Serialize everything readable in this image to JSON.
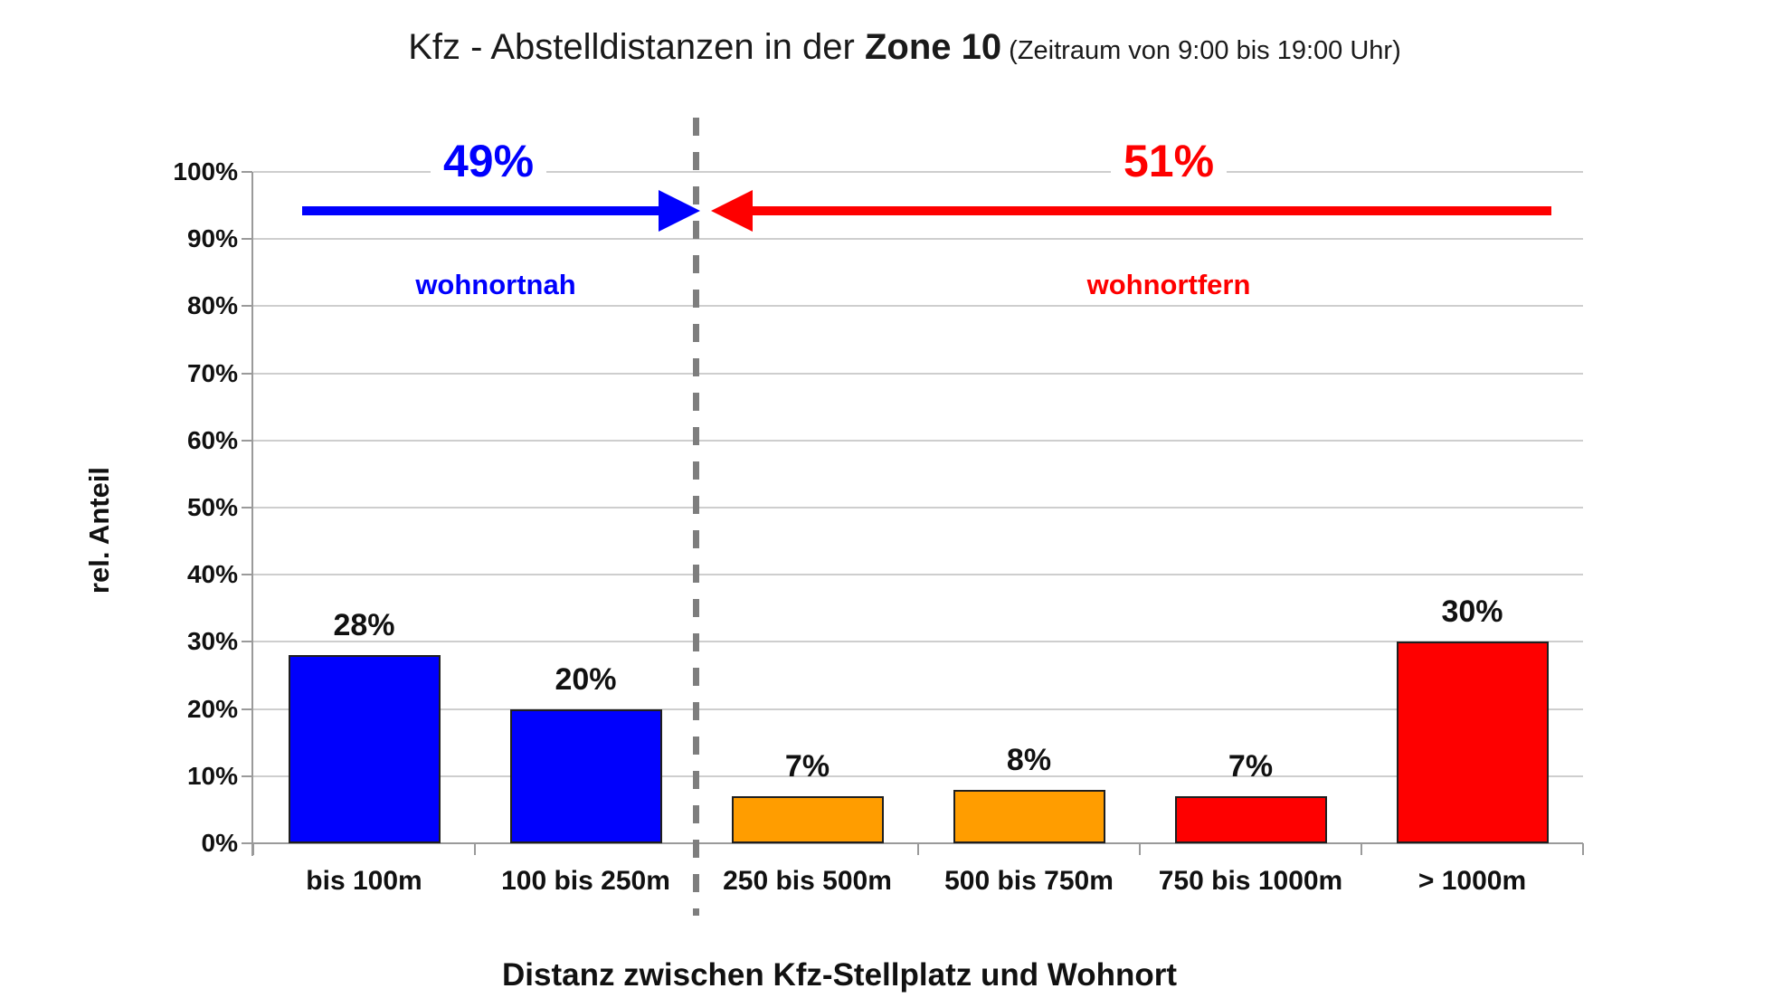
{
  "title": {
    "main": "Kfz - Abstelldistanzen in der ",
    "zone": "Zone 10",
    "period": " (Zeitraum von 9:00 bis 19:00 Uhr)"
  },
  "axes": {
    "y_label": "rel. Anteil",
    "x_label": "Distanz zwischen Kfz-Stellplatz und Wohnort"
  },
  "annotations": {
    "near": {
      "percent": "49%",
      "label": "wohnortnah"
    },
    "far": {
      "percent": "51%",
      "label": "wohnortfern"
    }
  },
  "chart_data": {
    "type": "bar",
    "title": "Kfz - Abstelldistanzen in der Zone 10 (Zeitraum von 9:00 bis 19:00 Uhr)",
    "categories": [
      "bis 100m",
      "100 bis 250m",
      "250 bis 500m",
      "500 bis 750m",
      "750 bis 1000m",
      "> 1000m"
    ],
    "values": [
      28,
      20,
      7,
      8,
      7,
      30
    ],
    "value_labels": [
      "28%",
      "20%",
      "7%",
      "8%",
      "7%",
      "30%"
    ],
    "bar_colors": [
      "#0000FD",
      "#0000FD",
      "#FF9D00",
      "#FF9D00",
      "#FE0000",
      "#FE0000"
    ],
    "xlabel": "Distanz zwischen Kfz-Stellplatz und Wohnort",
    "ylabel": "rel. Anteil",
    "ylim": [
      0,
      100
    ],
    "ytick_step": 10,
    "ytick_suffix": "%",
    "grid": true,
    "legend_position": "none",
    "groups": [
      {
        "label": "wohnortnah",
        "percent": "49%",
        "categories_span": [
          0,
          1
        ],
        "color": "#0000FD",
        "arrow_direction": "right"
      },
      {
        "label": "wohnortfern",
        "percent": "51%",
        "categories_span": [
          2,
          5
        ],
        "color": "#FE0000",
        "arrow_direction": "left"
      }
    ],
    "divider_after_category_index": 1
  },
  "colors": {
    "near_blue": "#0000FD",
    "far_red": "#FE0000",
    "mid_orange": "#FF9D00",
    "gridline": "#CECECE",
    "axis": "#9A9A9A",
    "divider": "#7E7E7E",
    "bar_border": "#1F1F1F",
    "background": "#FFFFFF",
    "text": "#111111"
  }
}
